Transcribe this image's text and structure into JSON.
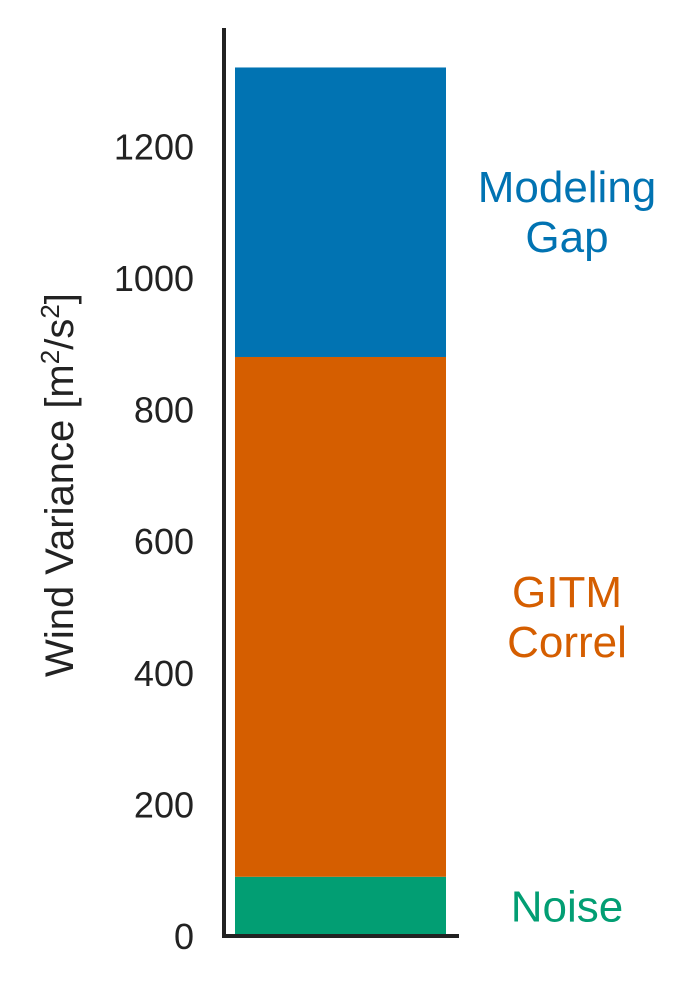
{
  "chart_data": {
    "type": "bar",
    "stacked": true,
    "categories": [
      ""
    ],
    "ylabel": {
      "main": "Wind Variance [m",
      "sup1": "2",
      "mid": "/s",
      "sup2": "2",
      "end": "]"
    },
    "ylim": [
      0,
      1380
    ],
    "yticks": [
      "0",
      "200",
      "400",
      "600",
      "800",
      "1000",
      "1200"
    ],
    "grid": false,
    "legend": "none (labels beside segments)",
    "series": [
      {
        "name": "Noise",
        "label_lines": [
          "Noise"
        ],
        "values": [
          90
        ],
        "color": "#029e73"
      },
      {
        "name": "GITM Correl",
        "label_lines": [
          "GITM",
          "Correl"
        ],
        "values": [
          790
        ],
        "color": "#d55e00"
      },
      {
        "name": "Modeling Gap",
        "label_lines": [
          "Modeling",
          "Gap"
        ],
        "values": [
          440
        ],
        "color": "#0173b2"
      }
    ]
  }
}
